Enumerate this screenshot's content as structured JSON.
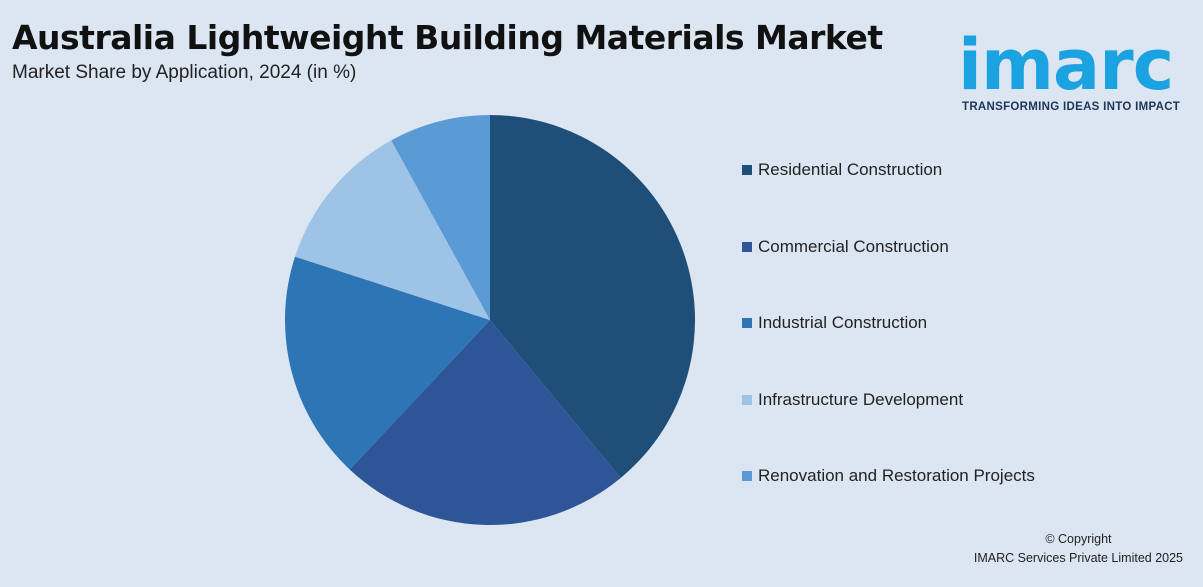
{
  "header": {
    "title": "Australia Lightweight Building Materials Market",
    "subtitle": "Market Share by Application, 2024 (in %)"
  },
  "logo": {
    "word": "imarc",
    "tagline": "TRANSFORMING IDEAS INTO IMPACT"
  },
  "footer": {
    "copyright": "© Copyright",
    "company": "IMARC Services Private Limited 2025"
  },
  "chart_data": {
    "type": "pie",
    "title": "Australia Lightweight Building Materials Market",
    "subtitle": "Market Share by Application, 2024 (in %)",
    "legend_position": "right",
    "categories": [
      "Residential Construction",
      "Commercial Construction",
      "Industrial Construction",
      "Infrastructure Development",
      "Renovation and Restoration Projects"
    ],
    "values": [
      39,
      23,
      18,
      12,
      8
    ],
    "colors": [
      "#1f4e79",
      "#2e5597",
      "#2e75b6",
      "#9dc3e6",
      "#5b9bd5"
    ]
  }
}
